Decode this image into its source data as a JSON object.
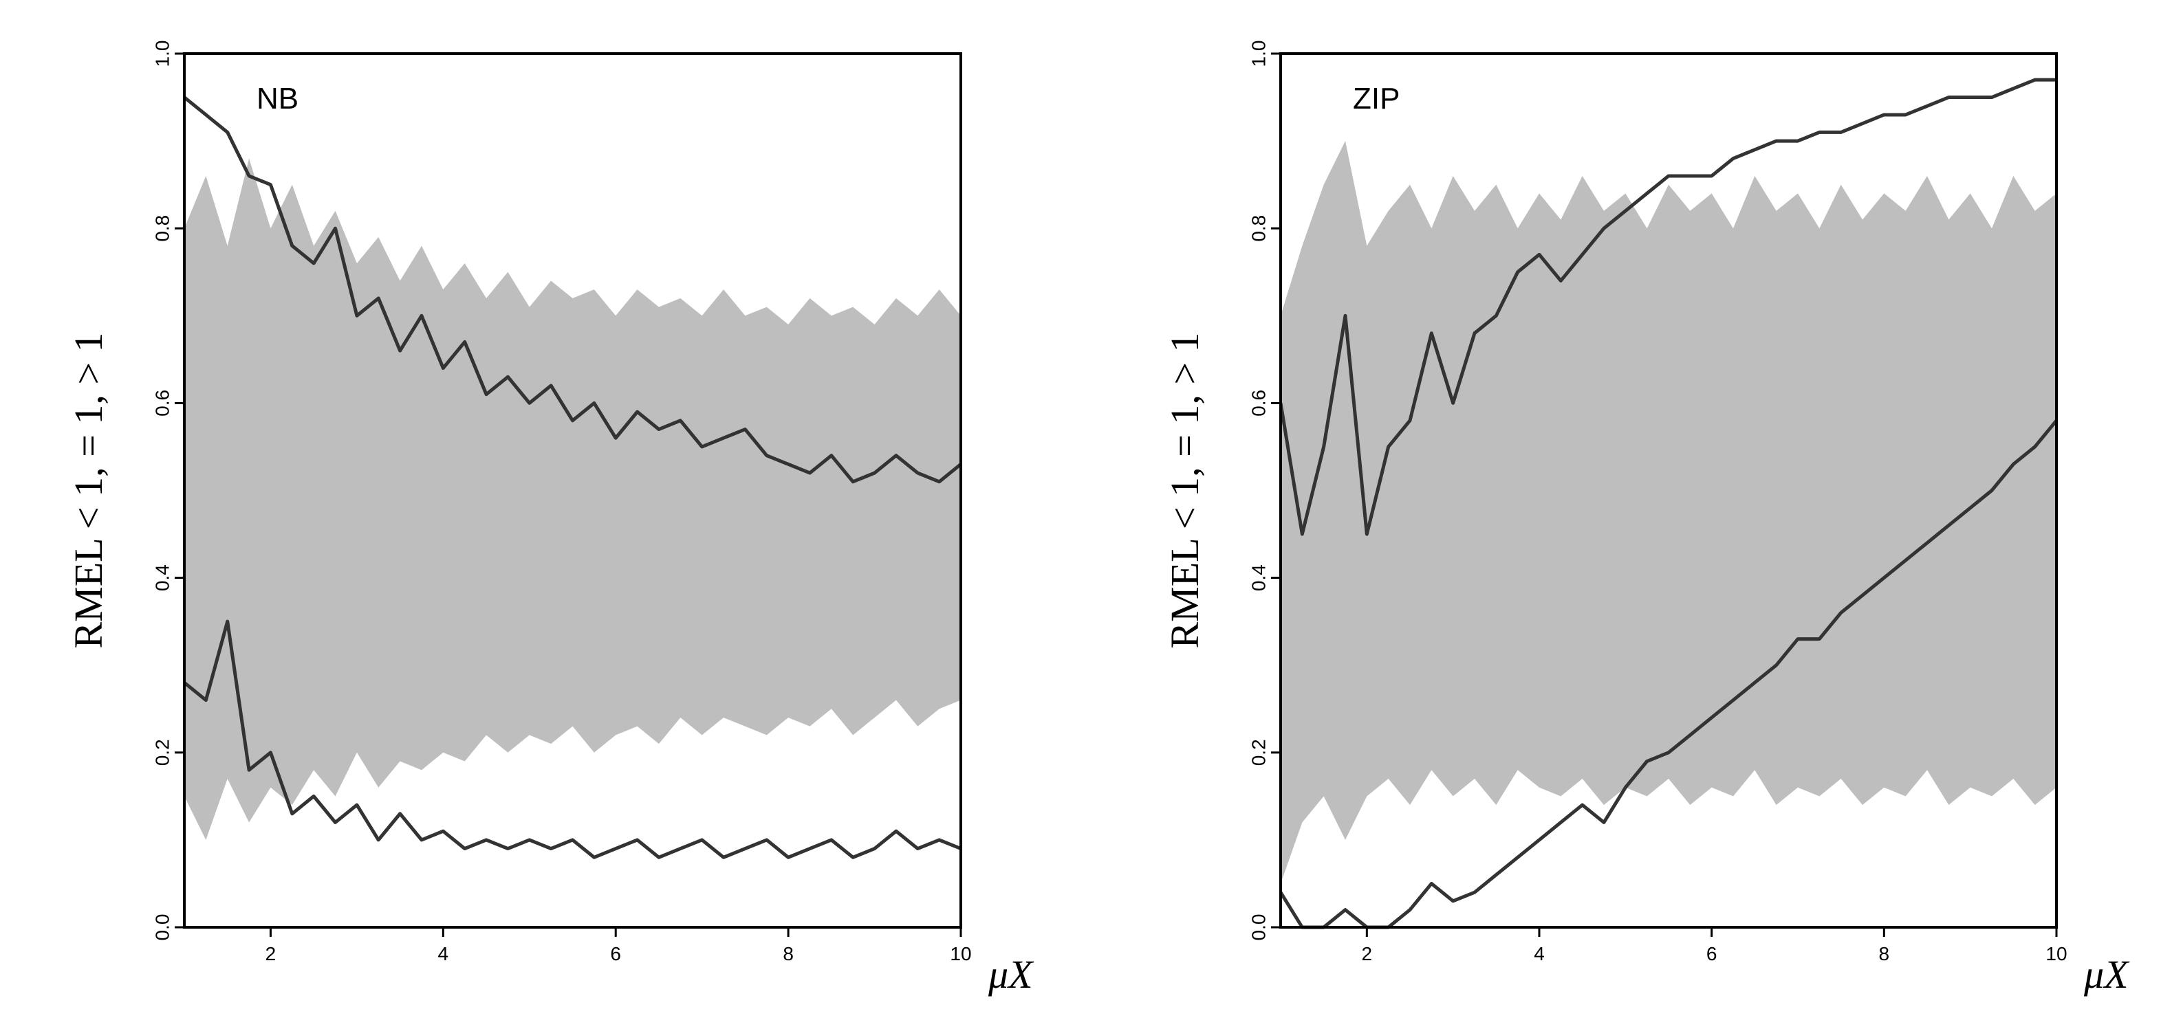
{
  "chart_data": [
    {
      "type": "line",
      "annotation": "NB",
      "ylabel": "RMEL < 1, = 1, > 1",
      "xlabel": "μX",
      "xlim": [
        1,
        10
      ],
      "ylim": [
        0,
        1
      ],
      "xticks": [
        2,
        4,
        6,
        8,
        10
      ],
      "yticks": [
        {
          "value": 0,
          "label": "0.0"
        },
        0.2,
        0.4,
        0.6,
        0.8,
        {
          "value": 1,
          "label": "1.0"
        }
      ],
      "x": [
        1,
        1.25,
        1.5,
        1.75,
        2,
        2.25,
        2.5,
        2.75,
        3,
        3.25,
        3.5,
        3.75,
        4,
        4.25,
        4.5,
        4.75,
        5,
        5.25,
        5.5,
        5.75,
        6,
        6.25,
        6.5,
        6.75,
        7,
        7.25,
        7.5,
        7.75,
        8,
        8.25,
        8.5,
        8.75,
        9,
        9.25,
        9.5,
        9.75,
        10
      ],
      "band": {
        "color": "#bebebe",
        "upper": [
          0.8,
          0.86,
          0.78,
          0.88,
          0.8,
          0.85,
          0.78,
          0.82,
          0.76,
          0.79,
          0.74,
          0.78,
          0.73,
          0.76,
          0.72,
          0.75,
          0.71,
          0.74,
          0.72,
          0.73,
          0.7,
          0.73,
          0.71,
          0.72,
          0.7,
          0.73,
          0.7,
          0.71,
          0.69,
          0.72,
          0.7,
          0.71,
          0.69,
          0.72,
          0.7,
          0.73,
          0.7
        ],
        "lower": [
          0.15,
          0.1,
          0.17,
          0.12,
          0.16,
          0.14,
          0.18,
          0.15,
          0.2,
          0.16,
          0.19,
          0.18,
          0.2,
          0.19,
          0.22,
          0.2,
          0.22,
          0.21,
          0.23,
          0.2,
          0.22,
          0.23,
          0.21,
          0.24,
          0.22,
          0.24,
          0.23,
          0.22,
          0.24,
          0.23,
          0.25,
          0.22,
          0.24,
          0.26,
          0.23,
          0.25,
          0.26
        ]
      },
      "series": [
        {
          "color": "#333333",
          "values": [
            0.95,
            0.93,
            0.91,
            0.86,
            0.85,
            0.78,
            0.76,
            0.8,
            0.7,
            0.72,
            0.66,
            0.7,
            0.64,
            0.67,
            0.61,
            0.63,
            0.6,
            0.62,
            0.58,
            0.6,
            0.56,
            0.59,
            0.57,
            0.58,
            0.55,
            0.56,
            0.57,
            0.54,
            0.53,
            0.52,
            0.54,
            0.51,
            0.52,
            0.54,
            0.52,
            0.51,
            0.53
          ]
        },
        {
          "color": "#333333",
          "values": [
            0.28,
            0.26,
            0.35,
            0.18,
            0.2,
            0.13,
            0.15,
            0.12,
            0.14,
            0.1,
            0.13,
            0.1,
            0.11,
            0.09,
            0.1,
            0.09,
            0.1,
            0.09,
            0.1,
            0.08,
            0.09,
            0.1,
            0.08,
            0.09,
            0.1,
            0.08,
            0.09,
            0.1,
            0.08,
            0.09,
            0.1,
            0.08,
            0.09,
            0.11,
            0.09,
            0.1,
            0.09
          ]
        }
      ]
    },
    {
      "type": "line",
      "annotation": "ZIP",
      "ylabel": "RMEL < 1, = 1, > 1",
      "xlabel": "μX",
      "xlim": [
        1,
        10
      ],
      "ylim": [
        0,
        1
      ],
      "xticks": [
        2,
        4,
        6,
        8,
        10
      ],
      "yticks": [
        {
          "value": 0,
          "label": "0.0"
        },
        0.2,
        0.4,
        0.6,
        0.8,
        {
          "value": 1,
          "label": "1.0"
        }
      ],
      "x": [
        1,
        1.25,
        1.5,
        1.75,
        2,
        2.25,
        2.5,
        2.75,
        3,
        3.25,
        3.5,
        3.75,
        4,
        4.25,
        4.5,
        4.75,
        5,
        5.25,
        5.5,
        5.75,
        6,
        6.25,
        6.5,
        6.75,
        7,
        7.25,
        7.5,
        7.75,
        8,
        8.25,
        8.5,
        8.75,
        9,
        9.25,
        9.5,
        9.75,
        10
      ],
      "band": {
        "color": "#bebebe",
        "upper": [
          0.7,
          0.78,
          0.85,
          0.9,
          0.78,
          0.82,
          0.85,
          0.8,
          0.86,
          0.82,
          0.85,
          0.8,
          0.84,
          0.81,
          0.86,
          0.82,
          0.84,
          0.8,
          0.85,
          0.82,
          0.84,
          0.8,
          0.86,
          0.82,
          0.84,
          0.8,
          0.85,
          0.81,
          0.84,
          0.82,
          0.86,
          0.81,
          0.84,
          0.8,
          0.86,
          0.82,
          0.84
        ],
        "lower": [
          0.05,
          0.12,
          0.15,
          0.1,
          0.15,
          0.17,
          0.14,
          0.18,
          0.15,
          0.17,
          0.14,
          0.18,
          0.16,
          0.15,
          0.17,
          0.14,
          0.16,
          0.15,
          0.17,
          0.14,
          0.16,
          0.15,
          0.18,
          0.14,
          0.16,
          0.15,
          0.17,
          0.14,
          0.16,
          0.15,
          0.18,
          0.14,
          0.16,
          0.15,
          0.17,
          0.14,
          0.16
        ]
      },
      "series": [
        {
          "color": "#333333",
          "values": [
            0.6,
            0.45,
            0.55,
            0.7,
            0.45,
            0.55,
            0.58,
            0.68,
            0.6,
            0.68,
            0.7,
            0.75,
            0.77,
            0.74,
            0.77,
            0.8,
            0.82,
            0.84,
            0.86,
            0.86,
            0.86,
            0.88,
            0.89,
            0.9,
            0.9,
            0.91,
            0.91,
            0.92,
            0.93,
            0.93,
            0.94,
            0.95,
            0.95,
            0.95,
            0.96,
            0.97,
            0.97
          ]
        },
        {
          "color": "#333333",
          "values": [
            0.04,
            0,
            0,
            0.02,
            0,
            0,
            0.02,
            0.05,
            0.03,
            0.04,
            0.06,
            0.08,
            0.1,
            0.12,
            0.14,
            0.12,
            0.16,
            0.19,
            0.2,
            0.22,
            0.24,
            0.26,
            0.28,
            0.3,
            0.33,
            0.33,
            0.36,
            0.38,
            0.4,
            0.42,
            0.44,
            0.46,
            0.48,
            0.5,
            0.53,
            0.55,
            0.58
          ]
        }
      ]
    }
  ]
}
